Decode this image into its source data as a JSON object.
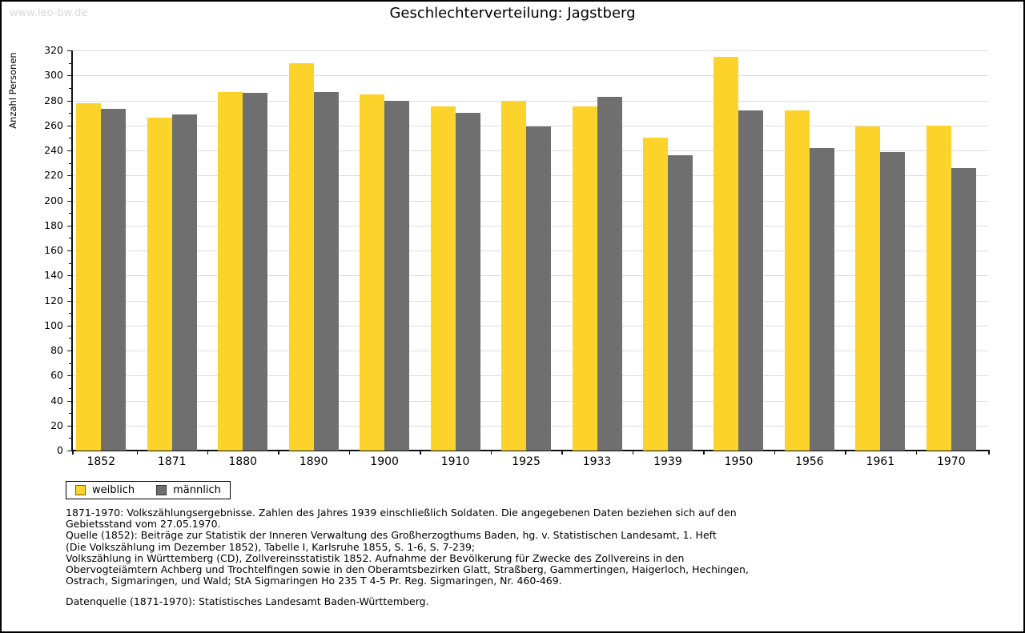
{
  "page": {
    "watermark": "www.leo-bw.de",
    "title": "Geschlechterverteilung: Jagstberg"
  },
  "chart_data": {
    "type": "bar",
    "title": "Geschlechterverteilung: Jagstberg",
    "xlabel": "",
    "ylabel": "Anzahl Personen",
    "ylim": [
      0,
      320
    ],
    "ytick_step": 20,
    "minor_tick_step": 10,
    "grid": true,
    "legend_position": "bottom-left",
    "categories": [
      "1852",
      "1871",
      "1880",
      "1890",
      "1900",
      "1910",
      "1925",
      "1933",
      "1939",
      "1950",
      "1956",
      "1961",
      "1970"
    ],
    "series": [
      {
        "name": "weiblich",
        "color": "#fcd32b",
        "values": [
          278,
          266,
          287,
          310,
          285,
          275,
          280,
          275,
          250,
          315,
          272,
          259,
          260
        ]
      },
      {
        "name": "männlich",
        "color": "#6f6f6f",
        "values": [
          273,
          269,
          286,
          287,
          280,
          270,
          259,
          283,
          236,
          272,
          242,
          239,
          226
        ]
      }
    ]
  },
  "footer": {
    "blocks": [
      [
        "1871-1970: Volkszählungsergebnisse. Zahlen des Jahres 1939 einschließlich Soldaten. Die angegebenen Daten beziehen sich auf den",
        "Gebietsstand vom 27.05.1970.",
        "Quelle (1852): Beiträge zur Statistik der Inneren Verwaltung des Großherzogthums Baden, hg. v. Statistischen Landesamt, 1. Heft",
        "(Die Volkszählung im Dezember 1852), Tabelle I, Karlsruhe 1855, S. 1-6, S. 7-239;",
        "Volkszählung in Württemberg (CD), Zollvereinsstatistik 1852. Aufnahme der Bevölkerung für Zwecke des Zollvereins in den",
        "Obervogteiämtern Achberg und Trochtelfingen sowie in den Oberamtsbezirken Glatt, Straßberg, Gammertingen, Haigerloch, Hechingen,",
        "Ostrach, Sigmaringen, und Wald; StA Sigmaringen Ho 235 T 4-5 Pr. Reg. Sigmaringen, Nr. 460-469."
      ],
      [
        "Datenquelle (1871-1970): Statistisches Landesamt Baden-Württemberg."
      ]
    ]
  }
}
